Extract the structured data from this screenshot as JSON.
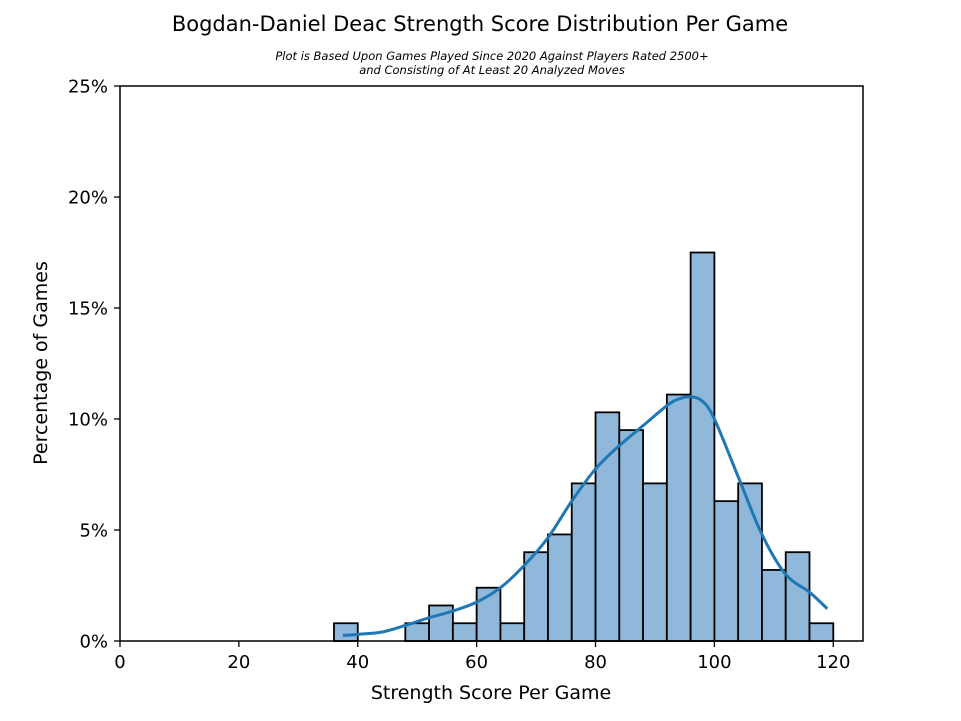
{
  "chart_data": {
    "type": "bar",
    "title": "Bogdan-Daniel Deac Strength Score Distribution Per Game",
    "subtitle_lines": [
      "Plot is Based Upon Games Played Since 2020 Against Players Rated 2500+",
      "and Consisting of At Least 20 Analyzed Moves"
    ],
    "xlabel": "Strength Score Per Game",
    "ylabel": "Percentage of Games",
    "xlim": [
      0,
      125
    ],
    "ylim": [
      0,
      25
    ],
    "x_ticks": [
      0,
      20,
      40,
      60,
      80,
      100,
      120
    ],
    "x_tick_labels": [
      "0",
      "20",
      "40",
      "60",
      "80",
      "100",
      "120"
    ],
    "y_ticks": [
      0,
      5,
      10,
      15,
      20,
      25
    ],
    "y_tick_labels": [
      "0%",
      "5%",
      "10%",
      "15%",
      "20%",
      "25%"
    ],
    "bar_color": "#8fb8da",
    "bar_edge_color": "#000000",
    "kde_color": "#1f77b4",
    "bins": [
      {
        "x0": 36,
        "x1": 40,
        "value": 0.8
      },
      {
        "x0": 48,
        "x1": 52,
        "value": 0.8
      },
      {
        "x0": 52,
        "x1": 56,
        "value": 1.6
      },
      {
        "x0": 56,
        "x1": 60,
        "value": 0.8
      },
      {
        "x0": 60,
        "x1": 64,
        "value": 2.4
      },
      {
        "x0": 64,
        "x1": 68,
        "value": 0.8
      },
      {
        "x0": 68,
        "x1": 72,
        "value": 4.0
      },
      {
        "x0": 72,
        "x1": 76,
        "value": 4.8
      },
      {
        "x0": 76,
        "x1": 80,
        "value": 7.1
      },
      {
        "x0": 80,
        "x1": 84,
        "value": 10.3
      },
      {
        "x0": 84,
        "x1": 88,
        "value": 9.5
      },
      {
        "x0": 88,
        "x1": 92,
        "value": 7.1
      },
      {
        "x0": 92,
        "x1": 96,
        "value": 11.1
      },
      {
        "x0": 96,
        "x1": 100,
        "value": 17.5
      },
      {
        "x0": 100,
        "x1": 104,
        "value": 6.3
      },
      {
        "x0": 104,
        "x1": 108,
        "value": 7.1
      },
      {
        "x0": 108,
        "x1": 112,
        "value": 3.2
      },
      {
        "x0": 112,
        "x1": 116,
        "value": 4.0
      },
      {
        "x0": 116,
        "x1": 120,
        "value": 0.8
      }
    ],
    "kde": {
      "x": [
        37.5,
        40,
        44,
        48,
        52,
        56,
        60,
        64,
        68,
        72,
        76,
        80,
        84,
        88,
        92,
        94,
        96,
        98,
        100,
        104,
        108,
        112,
        116,
        119
      ],
      "y": [
        0.25,
        0.3,
        0.4,
        0.7,
        1.05,
        1.35,
        1.75,
        2.4,
        3.4,
        4.65,
        6.3,
        7.75,
        8.8,
        9.7,
        10.6,
        10.9,
        11.0,
        10.8,
        10.0,
        7.4,
        4.8,
        3.0,
        2.2,
        1.45
      ]
    }
  }
}
